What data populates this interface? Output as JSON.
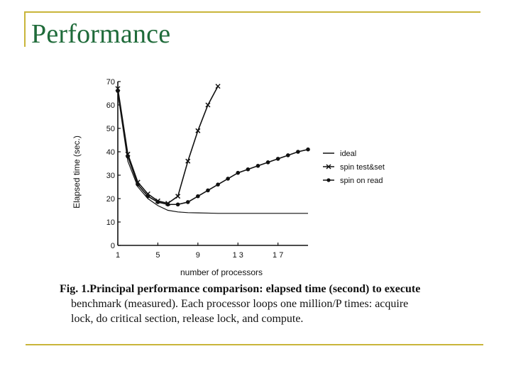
{
  "slide": {
    "title": "Performance"
  },
  "caption": {
    "fig_label": "Fig. 1.",
    "line1": "Principal performance comparison: elapsed time (second) to execute",
    "line2": "benchmark (measured). Each processor loops one million/P times: acquire",
    "line3": "lock, do critical section, release lock, and compute."
  },
  "chart_data": {
    "type": "line",
    "xlabel": "number of processors",
    "ylabel": "Elapsed time (sec.)",
    "xlim": [
      1,
      20
    ],
    "ylim": [
      0,
      70
    ],
    "x_ticks": [
      1,
      5,
      9,
      13,
      17
    ],
    "x_tick_labels": [
      "1",
      "5",
      "9",
      "1 3",
      "1 7"
    ],
    "y_ticks": [
      0,
      10,
      20,
      30,
      40,
      50,
      60,
      70
    ],
    "grid": false,
    "legend_position": "right",
    "series": [
      {
        "name": "ideal",
        "marker": "none",
        "color": "#111111",
        "x": [
          1,
          2,
          3,
          4,
          5,
          6,
          7,
          8,
          9,
          10,
          11,
          12,
          13,
          14,
          15,
          16,
          17,
          18,
          19,
          20
        ],
        "y": [
          65,
          36,
          25,
          20,
          17,
          15,
          14.3,
          14,
          13.9,
          13.8,
          13.7,
          13.7,
          13.7,
          13.7,
          13.7,
          13.7,
          13.7,
          13.7,
          13.7,
          13.7
        ]
      },
      {
        "name": "spin test&set",
        "marker": "x",
        "color": "#111111",
        "x": [
          1,
          2,
          3,
          4,
          5,
          6,
          7,
          8,
          9,
          10,
          11
        ],
        "y": [
          67,
          39,
          27,
          22,
          19,
          18,
          21,
          36,
          49,
          60,
          68
        ]
      },
      {
        "name": "spin on read",
        "marker": "dot",
        "color": "#111111",
        "x": [
          1,
          2,
          3,
          4,
          5,
          6,
          7,
          8,
          9,
          10,
          11,
          12,
          13,
          14,
          15,
          16,
          17,
          18,
          19,
          20
        ],
        "y": [
          66,
          38,
          26,
          21,
          18.5,
          17.5,
          17.5,
          18.5,
          21,
          23.5,
          26,
          28.5,
          31,
          32.5,
          34,
          35.5,
          37,
          38.5,
          40,
          41
        ]
      }
    ]
  }
}
